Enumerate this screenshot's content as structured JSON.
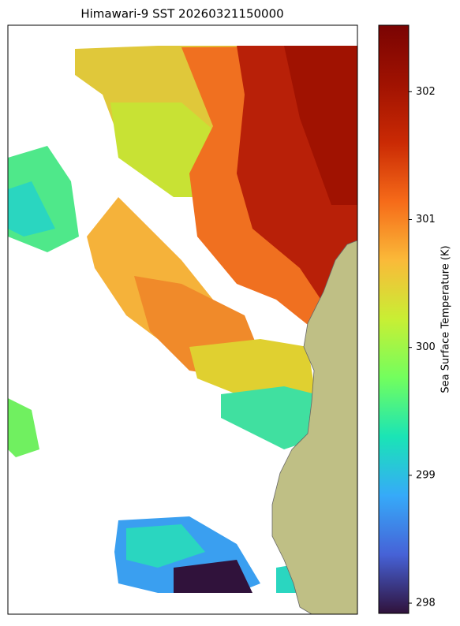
{
  "chart_data": {
    "type": "heatmap",
    "title": "Himawari-9 SST 20260321150000",
    "colorbar_label": "Sea Surface Temperature (K)",
    "clim": [
      297.92,
      302.52
    ],
    "cticks": [
      298,
      299,
      300,
      301,
      302
    ]
  }
}
